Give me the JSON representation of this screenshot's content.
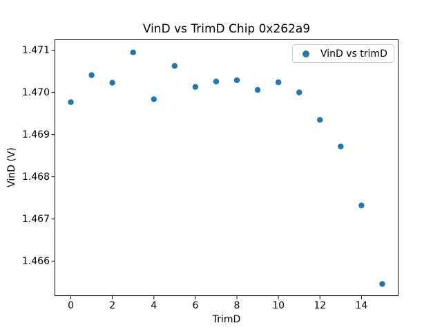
{
  "chart_data": {
    "type": "scatter",
    "title": "VinD vs TrimD Chip 0x262a9",
    "xlabel": "TrimD",
    "ylabel": "VinD (V)",
    "legend_label": "VinD vs trimD",
    "legend_position": "upper right",
    "marker_color": "#1f77b4",
    "grid": false,
    "x": [
      0,
      1,
      2,
      3,
      4,
      5,
      6,
      7,
      8,
      9,
      10,
      11,
      12,
      13,
      14,
      15
    ],
    "y": [
      1.46977,
      1.47041,
      1.47023,
      1.47095,
      1.46984,
      1.47063,
      1.47013,
      1.47026,
      1.47029,
      1.47006,
      1.47024,
      1.47,
      1.46935,
      1.46872,
      1.46732,
      1.46546
    ],
    "xlim": [
      -0.75,
      15.75
    ],
    "ylim": [
      1.46519,
      1.47124
    ],
    "xtick_values": [
      0,
      2,
      4,
      6,
      8,
      10,
      12,
      14
    ],
    "xtick_labels": [
      "0",
      "2",
      "4",
      "6",
      "8",
      "10",
      "12",
      "14"
    ],
    "ytick_values": [
      1.466,
      1.467,
      1.468,
      1.469,
      1.47,
      1.471
    ],
    "ytick_labels": [
      "1.466",
      "1.467",
      "1.468",
      "1.469",
      "1.470",
      "1.471"
    ]
  }
}
